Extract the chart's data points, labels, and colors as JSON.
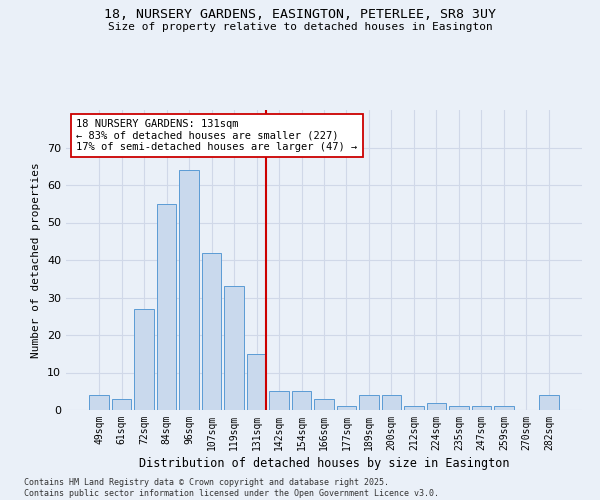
{
  "title_line1": "18, NURSERY GARDENS, EASINGTON, PETERLEE, SR8 3UY",
  "title_line2": "Size of property relative to detached houses in Easington",
  "xlabel": "Distribution of detached houses by size in Easington",
  "ylabel": "Number of detached properties",
  "categories": [
    "49sqm",
    "61sqm",
    "72sqm",
    "84sqm",
    "96sqm",
    "107sqm",
    "119sqm",
    "131sqm",
    "142sqm",
    "154sqm",
    "166sqm",
    "177sqm",
    "189sqm",
    "200sqm",
    "212sqm",
    "224sqm",
    "235sqm",
    "247sqm",
    "259sqm",
    "270sqm",
    "282sqm"
  ],
  "values": [
    4,
    3,
    27,
    55,
    64,
    42,
    33,
    15,
    5,
    5,
    3,
    1,
    4,
    4,
    1,
    2,
    1,
    1,
    1,
    0,
    4
  ],
  "bar_color": "#c9d9ed",
  "bar_edge_color": "#5b9bd5",
  "grid_color": "#d0d8e8",
  "background_color": "#eaf0f8",
  "marker_index": 7,
  "marker_color": "#cc0000",
  "annotation_title": "18 NURSERY GARDENS: 131sqm",
  "annotation_line1": "← 83% of detached houses are smaller (227)",
  "annotation_line2": "17% of semi-detached houses are larger (47) →",
  "annotation_box_color": "#ffffff",
  "annotation_box_edge": "#cc0000",
  "footer_line1": "Contains HM Land Registry data © Crown copyright and database right 2025.",
  "footer_line2": "Contains public sector information licensed under the Open Government Licence v3.0.",
  "ylim": [
    0,
    80
  ],
  "yticks": [
    0,
    10,
    20,
    30,
    40,
    50,
    60,
    70,
    80
  ]
}
